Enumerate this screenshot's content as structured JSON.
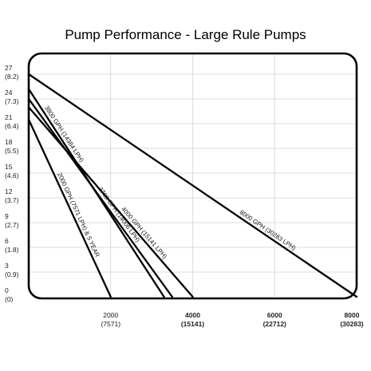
{
  "chart_data": {
    "type": "line",
    "title": "Pump Performance - Large Rule Pumps",
    "xlabel": "",
    "ylabel": "",
    "xlim": [
      0,
      8000
    ],
    "ylim": [
      0,
      27
    ],
    "grid": true,
    "y_ticks": [
      {
        "value": 0,
        "primary": "0",
        "secondary": "(0)"
      },
      {
        "value": 3,
        "primary": "3",
        "secondary": "(0.9)"
      },
      {
        "value": 6,
        "primary": "6",
        "secondary": "(1.8)"
      },
      {
        "value": 9,
        "primary": "9",
        "secondary": "(2.7)"
      },
      {
        "value": 12,
        "primary": "12",
        "secondary": "(3.7)"
      },
      {
        "value": 15,
        "primary": "15",
        "secondary": "(4.6)"
      },
      {
        "value": 18,
        "primary": "18",
        "secondary": "(5.5)"
      },
      {
        "value": 21,
        "primary": "21",
        "secondary": "(6.4)"
      },
      {
        "value": 24,
        "primary": "24",
        "secondary": "(7.3)"
      },
      {
        "value": 27,
        "primary": "27",
        "secondary": "(8.2)"
      }
    ],
    "x_ticks": [
      {
        "value": 2000,
        "primary": "2000",
        "secondary": "(7571)",
        "bold": false
      },
      {
        "value": 4000,
        "primary": "4000",
        "secondary": "(15141)",
        "bold": true
      },
      {
        "value": 6000,
        "primary": "6000",
        "secondary": "(22712)",
        "bold": true
      },
      {
        "value": 8000,
        "primary": "8000",
        "secondary": "(30283)",
        "bold": true
      }
    ],
    "series": [
      {
        "name": "2000 GPH (7571 LPH) & 5 YEAR",
        "x": [
          0,
          2000
        ],
        "y": [
          21.5,
          0
        ],
        "label_at": 0.55
      },
      {
        "name": "3700 GPH (14006 LPH)",
        "x": [
          0,
          3500
        ],
        "y": [
          24,
          0
        ],
        "label_at": 0.6
      },
      {
        "name": "3800 GPH (14384 LPH)",
        "x": [
          0,
          3300
        ],
        "y": [
          25.2,
          0
        ],
        "label_at": 0.23
      },
      {
        "name": "4000 GPH (15141 LPH)",
        "x": [
          0,
          4000
        ],
        "y": [
          23,
          0
        ],
        "label_at": 0.68
      },
      {
        "name": "8000 GPH (30283 LPH)",
        "x": [
          0,
          8000
        ],
        "y": [
          27,
          0
        ],
        "label_at": 0.72
      }
    ]
  }
}
